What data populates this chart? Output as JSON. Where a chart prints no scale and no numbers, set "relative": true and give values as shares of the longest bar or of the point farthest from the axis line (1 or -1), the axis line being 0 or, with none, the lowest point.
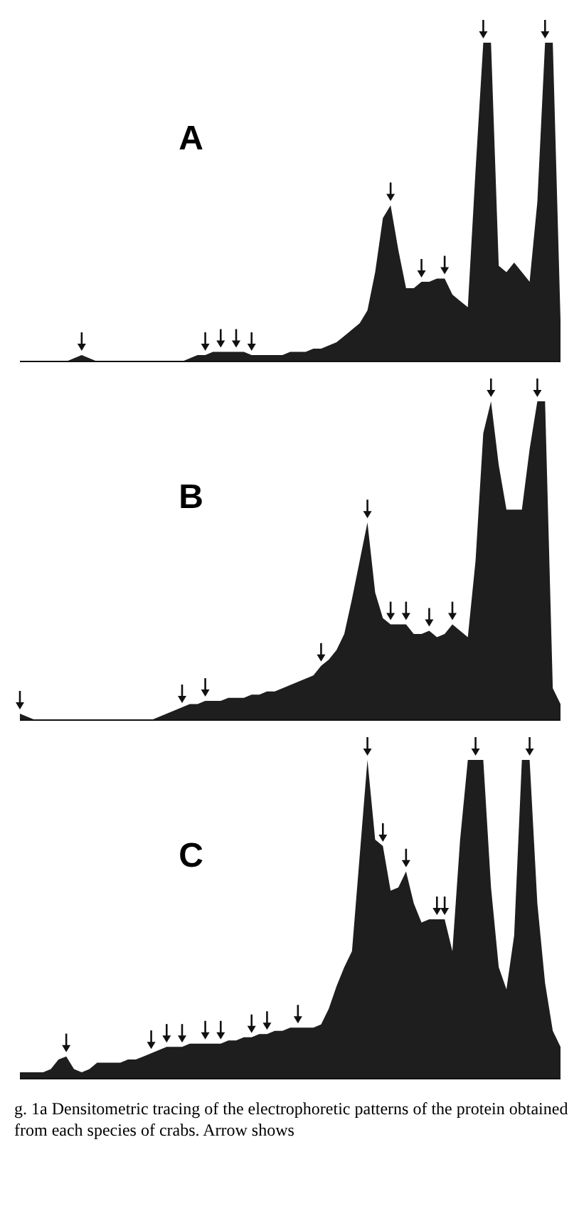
{
  "chart_data": [
    {
      "type": "area",
      "title": "A",
      "relative": true,
      "color": "#1e1e1e",
      "categories": [
        null,
        null,
        null,
        null,
        null,
        null,
        null,
        null,
        null,
        null,
        null,
        null,
        null,
        null,
        null,
        null,
        null,
        null,
        null,
        null,
        null,
        null,
        null,
        null,
        null,
        null,
        null,
        null,
        null,
        null,
        null,
        null,
        null,
        null,
        null,
        null,
        null,
        null,
        null,
        null,
        null,
        null,
        null,
        null,
        null,
        null,
        null,
        null,
        null,
        null,
        null,
        null,
        null,
        null,
        null,
        null,
        null,
        null,
        null,
        null,
        null,
        null,
        null,
        null,
        null,
        null,
        null,
        null,
        null,
        null,
        null
      ],
      "values": [
        0,
        0,
        0,
        0,
        0,
        0,
        0,
        0.01,
        0.02,
        0.01,
        0,
        0,
        0,
        0,
        0,
        0,
        0,
        0,
        0,
        0,
        0,
        0,
        0.01,
        0.02,
        0.02,
        0.03,
        0.03,
        0.03,
        0.03,
        0.03,
        0.02,
        0.02,
        0.02,
        0.02,
        0.02,
        0.03,
        0.03,
        0.03,
        0.04,
        0.04,
        0.05,
        0.06,
        0.08,
        0.1,
        0.12,
        0.16,
        0.28,
        0.45,
        0.49,
        0.35,
        0.23,
        0.23,
        0.25,
        0.25,
        0.26,
        0.26,
        0.21,
        0.19,
        0.17,
        0.6,
        1,
        1,
        0.3,
        0.28,
        0.31,
        0.28,
        0.25,
        0.5,
        1,
        1,
        0.13
      ]
    },
    {
      "type": "area",
      "title": "B",
      "relative": true,
      "color": "#1e1e1e",
      "categories": [
        null,
        null,
        null,
        null,
        null,
        null,
        null,
        null,
        null,
        null,
        null,
        null,
        null,
        null,
        null,
        null,
        null,
        null,
        null,
        null,
        null,
        null,
        null,
        null,
        null,
        null,
        null,
        null,
        null,
        null,
        null,
        null,
        null,
        null,
        null,
        null,
        null,
        null,
        null,
        null,
        null,
        null,
        null,
        null,
        null,
        null,
        null,
        null,
        null,
        null,
        null,
        null,
        null,
        null,
        null,
        null,
        null,
        null,
        null,
        null,
        null,
        null,
        null,
        null,
        null,
        null,
        null,
        null,
        null,
        null,
        null
      ],
      "values": [
        0.02,
        0.01,
        0,
        0,
        0,
        0,
        0,
        0,
        0,
        0,
        0,
        0,
        0,
        0,
        0,
        0,
        0,
        0,
        0.01,
        0.02,
        0.03,
        0.04,
        0.05,
        0.05,
        0.06,
        0.06,
        0.06,
        0.07,
        0.07,
        0.07,
        0.08,
        0.08,
        0.09,
        0.09,
        0.1,
        0.11,
        0.12,
        0.13,
        0.14,
        0.17,
        0.19,
        0.22,
        0.27,
        0.38,
        0.5,
        0.62,
        0.4,
        0.32,
        0.3,
        0.3,
        0.3,
        0.27,
        0.27,
        0.28,
        0.26,
        0.27,
        0.3,
        0.28,
        0.26,
        0.5,
        0.9,
        1,
        0.8,
        0.66,
        0.66,
        0.66,
        0.85,
        1,
        1,
        0.1,
        0.05
      ]
    },
    {
      "type": "area",
      "title": "C",
      "relative": true,
      "color": "#1e1e1e",
      "categories": [
        null,
        null,
        null,
        null,
        null,
        null,
        null,
        null,
        null,
        null,
        null,
        null,
        null,
        null,
        null,
        null,
        null,
        null,
        null,
        null,
        null,
        null,
        null,
        null,
        null,
        null,
        null,
        null,
        null,
        null,
        null,
        null,
        null,
        null,
        null,
        null,
        null,
        null,
        null,
        null,
        null,
        null,
        null,
        null,
        null,
        null,
        null,
        null,
        null,
        null,
        null,
        null,
        null,
        null,
        null,
        null,
        null,
        null,
        null,
        null,
        null,
        null,
        null,
        null,
        null,
        null,
        null,
        null,
        null,
        null,
        null
      ],
      "values": [
        0.02,
        0.02,
        0.02,
        0.02,
        0.03,
        0.06,
        0.07,
        0.03,
        0.02,
        0.03,
        0.05,
        0.05,
        0.05,
        0.05,
        0.06,
        0.06,
        0.07,
        0.08,
        0.09,
        0.1,
        0.1,
        0.1,
        0.11,
        0.11,
        0.11,
        0.11,
        0.11,
        0.12,
        0.12,
        0.13,
        0.13,
        0.14,
        0.14,
        0.15,
        0.15,
        0.16,
        0.16,
        0.16,
        0.16,
        0.17,
        0.22,
        0.29,
        0.35,
        0.4,
        0.7,
        1,
        0.75,
        0.73,
        0.59,
        0.6,
        0.65,
        0.55,
        0.49,
        0.5,
        0.5,
        0.5,
        0.4,
        0.75,
        1,
        1,
        1,
        0.6,
        0.35,
        0.28,
        0.45,
        1,
        1,
        0.55,
        0.3,
        0.15,
        0.1
      ],
      "annotations": [
        "g. 1a  Densitometric tracing of the electrophoretic patterns of the protein obtained from each species of crabs.  Arrow shows"
      ]
    }
  ]
}
